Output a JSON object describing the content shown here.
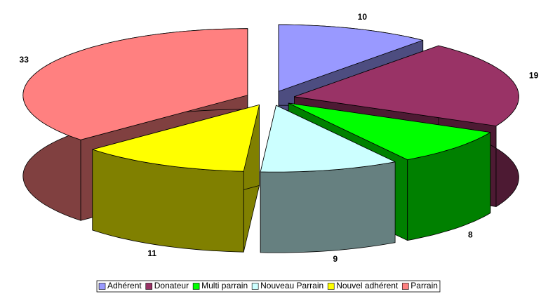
{
  "chart_data": {
    "type": "pie",
    "explode": true,
    "three_d": true,
    "categories": [
      "Adhérent",
      "Donateur",
      "Multi parrain",
      "Nouveau Parrain",
      "Nouvel adhérent",
      "Parrain"
    ],
    "values": [
      10,
      19,
      8,
      9,
      11,
      33
    ],
    "colors": [
      "#9999ff",
      "#993366",
      "#00ff00",
      "#ccffff",
      "#ffff00",
      "#ff8080"
    ],
    "legend": "bottom"
  }
}
